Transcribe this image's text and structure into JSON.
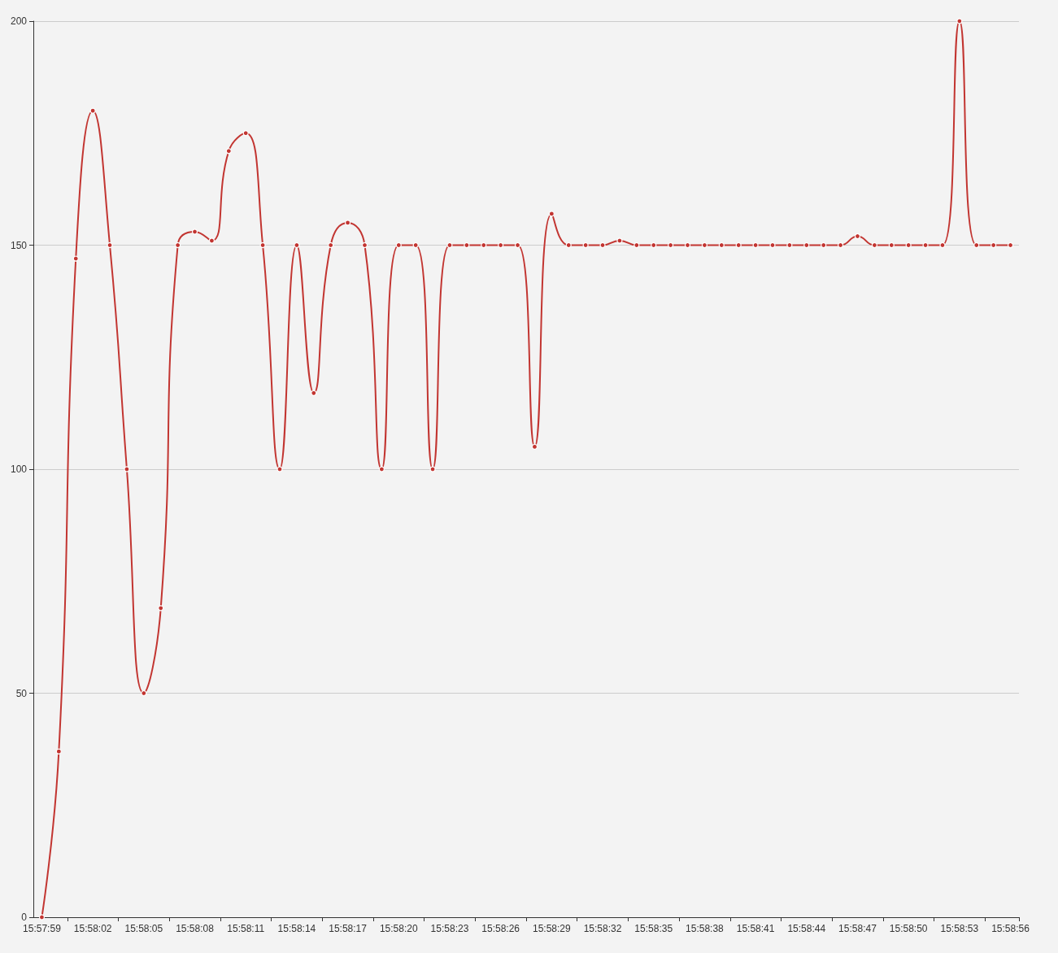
{
  "chart_data": {
    "type": "line",
    "categories": [
      "15:57:59",
      null,
      null,
      "15:58:02",
      null,
      null,
      "15:58:05",
      null,
      null,
      "15:58:08",
      null,
      null,
      "15:58:11",
      null,
      null,
      "15:58:14",
      null,
      null,
      "15:58:17",
      null,
      null,
      "15:58:20",
      null,
      null,
      "15:58:23",
      null,
      null,
      "15:58:26",
      null,
      null,
      "15:58:29",
      null,
      null,
      "15:58:32",
      null,
      null,
      "15:58:35",
      null,
      null,
      "15:58:38",
      null,
      null,
      "15:58:41",
      null,
      null,
      "15:58:44",
      null,
      null,
      "15:58:47",
      null,
      null,
      "15:58:50",
      null,
      null,
      "15:58:53",
      null,
      null,
      "15:58:56"
    ],
    "series": [
      {
        "color": "#c23531",
        "values": [
          0,
          37,
          147,
          180,
          150,
          100,
          50,
          69,
          150,
          153,
          151,
          171,
          175,
          150,
          100,
          150,
          117,
          150,
          155,
          150,
          100,
          150,
          150,
          100,
          150,
          150,
          150,
          150,
          150,
          105,
          157,
          150,
          150,
          150,
          151,
          150,
          150,
          150,
          150,
          150,
          150,
          150,
          150,
          150,
          150,
          150,
          150,
          150,
          152,
          150,
          150,
          150,
          150,
          150,
          200,
          150,
          150,
          150
        ]
      }
    ],
    "ylim": [
      0,
      200
    ],
    "yticks": [
      0,
      50,
      100,
      150,
      200
    ],
    "grid": "y",
    "marker": "circle",
    "line_style": "solid"
  }
}
